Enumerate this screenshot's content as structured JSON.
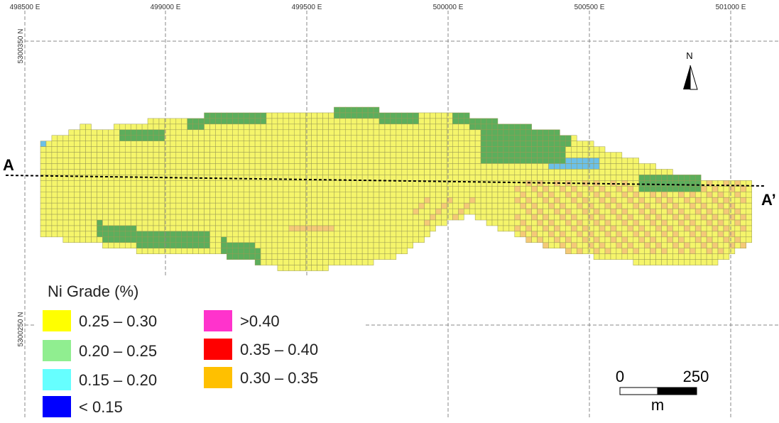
{
  "map": {
    "easting_labels": [
      "498500 E",
      "499000 E",
      "499500 E",
      "500000 E",
      "500500 E",
      "501000 E"
    ],
    "northing_labels": [
      "5300350 N",
      "5300250 N"
    ],
    "section_line": {
      "start_label": "A",
      "end_label": "A’"
    },
    "north_arrow": {
      "letter": "N"
    },
    "scale_bar": {
      "label_start": "0",
      "label_end": "250",
      "unit": "m"
    },
    "colors": {
      "grid_line": "#888888",
      "cell_outline": "#9a9a55",
      "section_line": "#000000"
    }
  },
  "legend": {
    "title": "Ni Grade (%)",
    "items": [
      {
        "label": "0.25 – 0.30",
        "color": "#ffff00"
      },
      {
        "label": "0.20 – 0.25",
        "color": "#90ee90"
      },
      {
        "label": "0.15 – 0.20",
        "color": "#66ffff"
      },
      {
        "label": "< 0.15",
        "color": "#0000ff"
      },
      {
        "label": ">0.40",
        "color": "#ff33cc"
      },
      {
        "label": "0.35 – 0.40",
        "color": "#ff0000"
      },
      {
        "label": "0.30 – 0.35",
        "color": "#ffc000"
      }
    ]
  },
  "block_colors": {
    "yellow": "#f5f56b",
    "green": "#5cae5c",
    "blue": "#6cc0e8",
    "orange": "#f5c978"
  }
}
